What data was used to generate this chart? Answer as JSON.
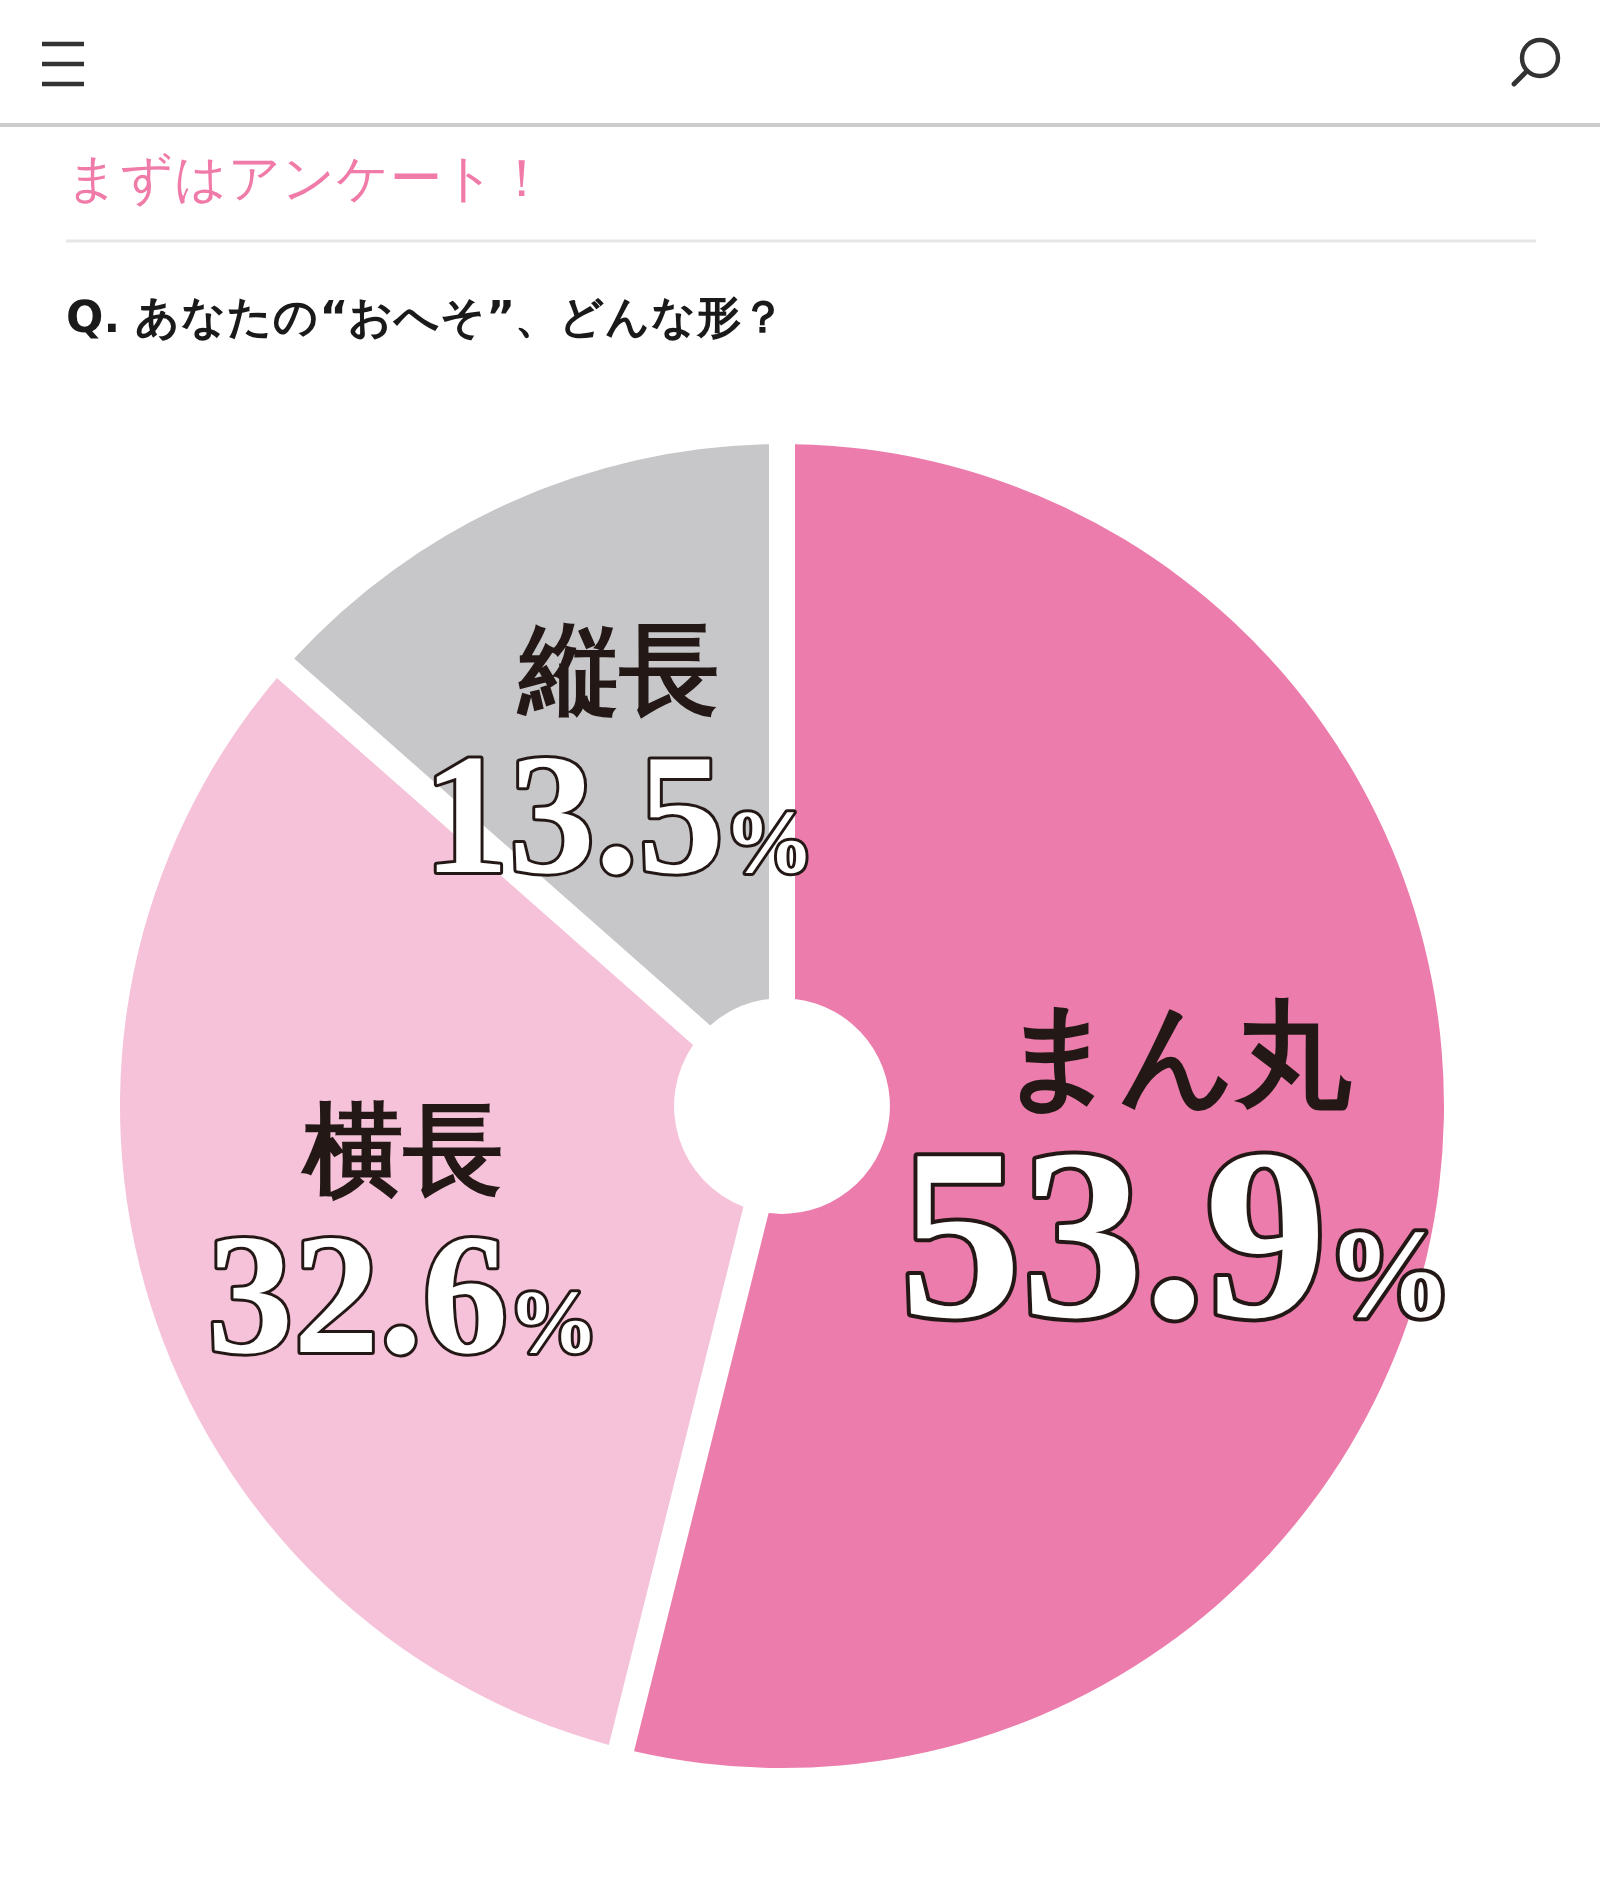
{
  "chart_data": {
    "type": "donut",
    "title": "まずはアンケート！",
    "subtitle": "Q. あなたの“おへそ”、どんな形？",
    "categories": [
      "まん丸",
      "横長",
      "縦長"
    ],
    "values": [
      53.9,
      32.6,
      13.5
    ],
    "colors": [
      "#ec7cab",
      "#f6c2d9",
      "#c7c7ca"
    ],
    "value_labels": [
      "53.9%",
      "32.6%",
      "13.5%"
    ]
  }
}
